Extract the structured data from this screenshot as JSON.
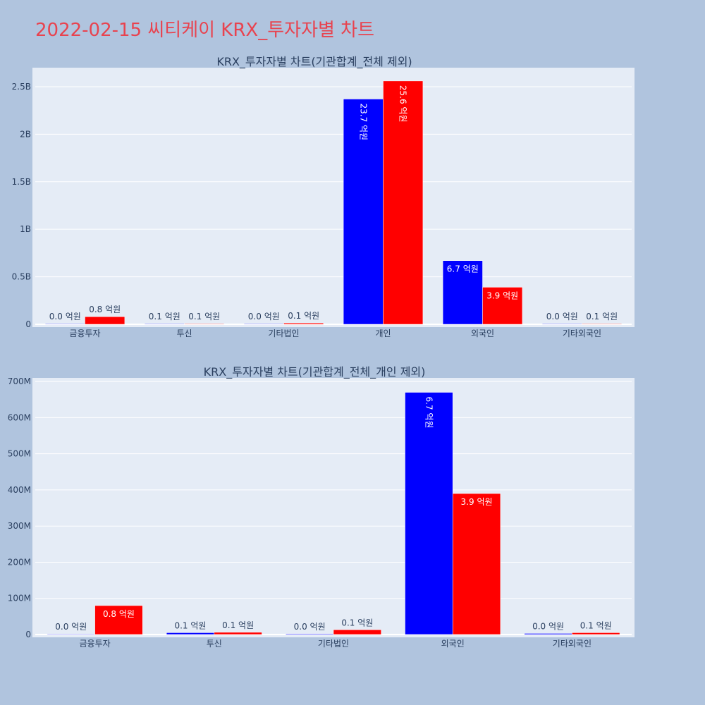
{
  "page_title": "2022-02-15 씨티케이 KRX_투자자별 차트",
  "colors": {
    "page_bg": "#b0c4de",
    "plot_bg": "#e5ecf6",
    "series_a": "#0000ff",
    "series_b": "#ff0000",
    "title": "#e8434f"
  },
  "chart_data": [
    {
      "type": "bar",
      "title": "KRX_투자자별 차트(기관합계_전체 제외)",
      "categories": [
        "금융투자",
        "투신",
        "기타법인",
        "개인",
        "외국인",
        "기타외국인"
      ],
      "ylim": [
        0,
        2700000000
      ],
      "yticks": [
        0,
        500000000,
        1000000000,
        1500000000,
        2000000000,
        2500000000
      ],
      "yticklabels": [
        "0",
        "0.5B",
        "1B",
        "1.5B",
        "2B",
        "2.5B"
      ],
      "grid": true,
      "series": [
        {
          "values": [
            1000000,
            5000000,
            2000000,
            2370000000,
            670000000,
            3000000
          ],
          "labels": [
            "0.0 억원",
            "0.1 억원",
            "0.0 억원",
            "23.7 억원",
            "6.7 억원",
            "0.0 억원"
          ]
        },
        {
          "values": [
            80000000,
            6000000,
            13000000,
            2560000000,
            390000000,
            5000000
          ],
          "labels": [
            "0.8 억원",
            "0.1 억원",
            "0.1 억원",
            "25.6 억원",
            "3.9 억원",
            "0.1 억원"
          ]
        }
      ]
    },
    {
      "type": "bar",
      "title": "KRX_투자자별 차트(기관합계_전체_개인 제외)",
      "categories": [
        "금융투자",
        "투신",
        "기타법인",
        "외국인",
        "기타외국인"
      ],
      "ylim": [
        0,
        710000000
      ],
      "yticks": [
        0,
        100000000,
        200000000,
        300000000,
        400000000,
        500000000,
        600000000,
        700000000
      ],
      "yticklabels": [
        "0",
        "100M",
        "200M",
        "300M",
        "400M",
        "500M",
        "600M",
        "700M"
      ],
      "grid": true,
      "series": [
        {
          "values": [
            1000000,
            5000000,
            2000000,
            670000000,
            3000000
          ],
          "labels": [
            "0.0 억원",
            "0.1 억원",
            "0.0 억원",
            "6.7 억원",
            "0.0 억원"
          ]
        },
        {
          "values": [
            80000000,
            6000000,
            13000000,
            390000000,
            5000000
          ],
          "labels": [
            "0.8 억원",
            "0.1 억원",
            "0.1 억원",
            "3.9 억원",
            "0.1 억원"
          ]
        }
      ]
    }
  ]
}
